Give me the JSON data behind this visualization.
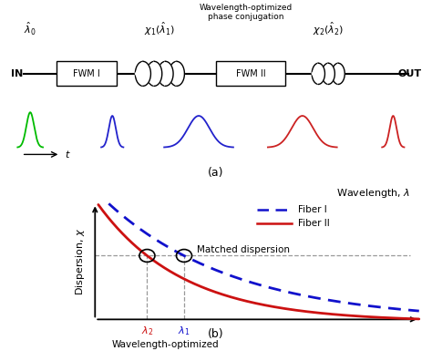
{
  "bg_color": "#ffffff",
  "top_panel": {
    "label_lambda0": "$\\hat{\\lambda}_0$",
    "label_chi1": "$\\chi_1(\\hat{\\lambda}_1)$",
    "label_chi2": "$\\chi_2(\\hat{\\lambda}_2)$",
    "label_wopc": "Wavelength-optimized\nphase conjugation",
    "label_in": "IN",
    "label_out": "OUT",
    "label_fwm1": "FWM I",
    "label_fwm2": "FWM II",
    "label_t": "$t$",
    "label_a": "(a)"
  },
  "bottom_panel": {
    "xlabel": "Wavelength, $\\lambda$",
    "ylabel": "Dispersion, $\\chi$",
    "legend_fiber1": "Fiber I",
    "legend_fiber2": "Fiber II",
    "label_matched": "Matched dispersion",
    "label_wopc": "Wavelength-optimized\nphase conjugation",
    "label_lambda2": "$\\lambda_2$",
    "label_lambda1": "$\\lambda_1$",
    "label_b": "(b)",
    "fiber1_color": "#1111cc",
    "fiber2_color": "#cc1111",
    "matched_disp_color": "#999999"
  }
}
